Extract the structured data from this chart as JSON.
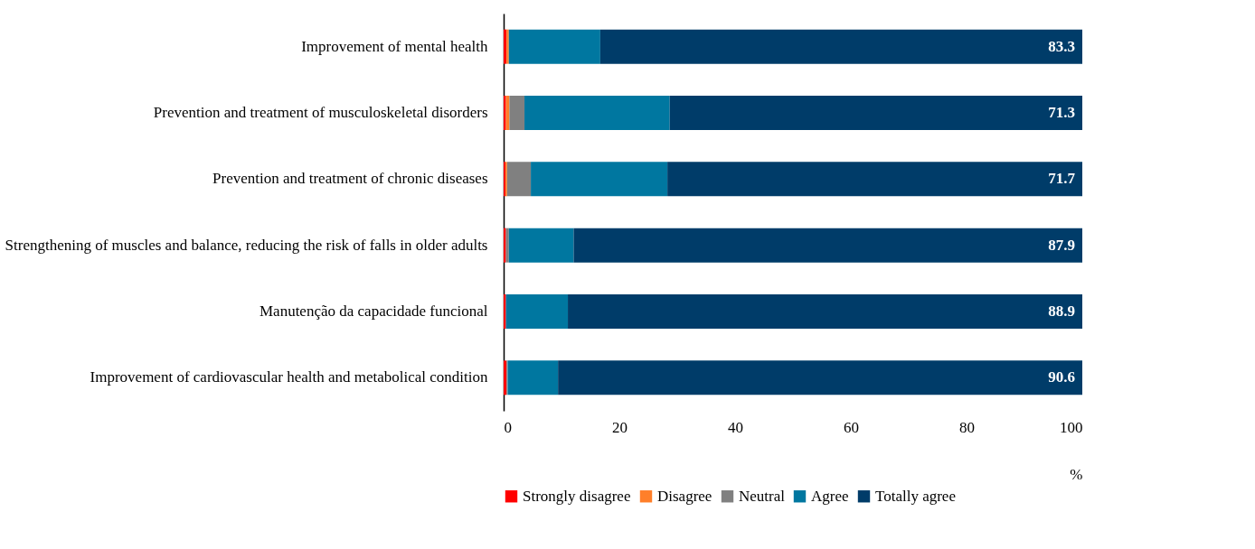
{
  "chart_data": {
    "type": "bar",
    "orientation": "horizontal",
    "stacked": true,
    "xlabel": "%",
    "categories": [
      "Improvement of mental health",
      "Prevention and treatment of musculoskeletal disorders",
      "Prevention and treatment of chronic diseases",
      "Strengthening of muscles and balance, reducing the risk of falls in older adults",
      "Manutenção da capacidade funcional",
      "Improvement of cardiovascular health and metabolical condition"
    ],
    "series": [
      {
        "name": "Strongly disagree",
        "color": "#ff0000",
        "values": [
          0.5,
          0.4,
          0.3,
          0.4,
          0.4,
          0.5
        ]
      },
      {
        "name": "Disagree",
        "color": "#ff7f2a",
        "values": [
          0.4,
          0.6,
          0.3,
          0.0,
          0.0,
          0.0
        ]
      },
      {
        "name": "Neutral",
        "color": "#808080",
        "values": [
          0.0,
          2.6,
          4.1,
          0.5,
          0.0,
          0.2
        ]
      },
      {
        "name": "Agree",
        "color": "#0077a0",
        "values": [
          15.8,
          25.1,
          23.6,
          11.2,
          10.7,
          8.7
        ]
      },
      {
        "name": "Totally agree",
        "color": "#003c69",
        "values": [
          83.3,
          71.3,
          71.7,
          87.9,
          88.9,
          90.6
        ],
        "value_labels": [
          "83.3",
          "71.3",
          "71.7",
          "87.9",
          "88.9",
          "90.6"
        ]
      }
    ],
    "xlim": [
      0,
      100
    ],
    "xticks": [
      0,
      20,
      40,
      60,
      80,
      100
    ],
    "grid": false,
    "legend": "bottom"
  }
}
